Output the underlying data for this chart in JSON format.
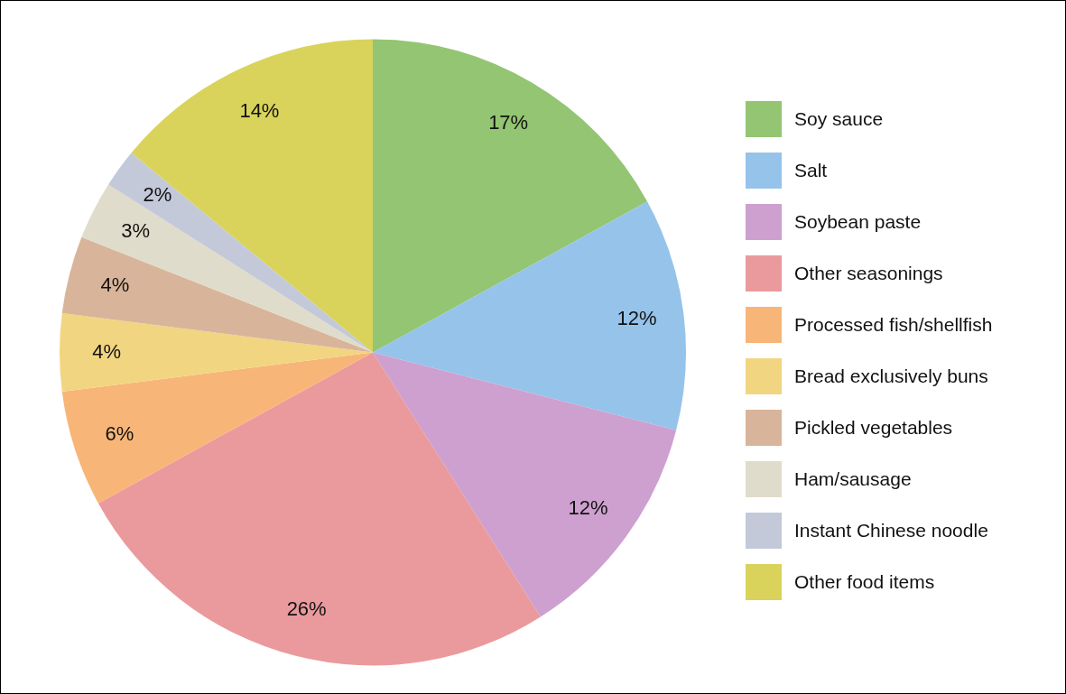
{
  "chart_data": {
    "type": "pie",
    "categories": [
      "Soy sauce",
      "Salt",
      "Soybean paste",
      "Other seasonings",
      "Processed fish/shellfish",
      "Bread exclusively buns",
      "Pickled vegetables",
      "Ham/sausage",
      "Instant Chinese noodle",
      "Other food items"
    ],
    "values": [
      17,
      12,
      12,
      26,
      6,
      4,
      4,
      3,
      2,
      14
    ],
    "value_labels": [
      "17%",
      "12%",
      "12%",
      "26%",
      "6%",
      "4%",
      "4%",
      "3%",
      "2%",
      "14%"
    ],
    "colors": [
      "#93c572",
      "#96c3ea",
      "#cda0cf",
      "#ea9a9c",
      "#f8b578",
      "#f2d580",
      "#d8b59a",
      "#e0dccb",
      "#c3c9d9",
      "#d9d35c"
    ],
    "legend": "right"
  }
}
